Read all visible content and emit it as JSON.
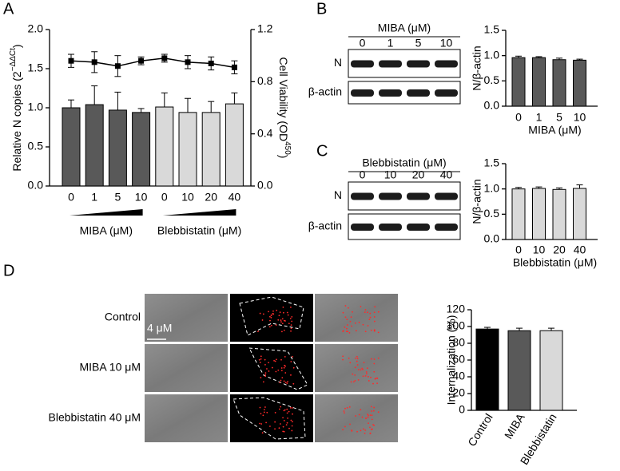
{
  "panel_labels": [
    "A",
    "B",
    "C",
    "D"
  ],
  "chart_data": [
    {
      "type": "bar",
      "ylabel": [
        "Relative N copies (2",
        "−ΔΔCt",
        ")"
      ],
      "y2label": [
        "Cell Viability (OD",
        "450",
        ")"
      ],
      "categories": [
        "0",
        "1",
        "5",
        "10",
        "0",
        "10",
        "20",
        "40"
      ],
      "groups": [
        "MIBA (μM)",
        "Blebbistatin (μM)"
      ],
      "ylim": [
        0,
        2
      ],
      "yticks": [
        {
          "value": 0,
          "label": "0.0"
        },
        0.5,
        {
          "value": 1,
          "label": "1.0"
        },
        1.5,
        {
          "value": 2,
          "label": "2.0"
        }
      ],
      "y2lim": [
        0,
        1.2
      ],
      "y2ticks": [
        {
          "value": 0,
          "label": "0.0"
        },
        0.4,
        0.8,
        1.2
      ],
      "series": [
        {
          "type": "bar",
          "colors": [
            "#595959",
            "#595959",
            "#595959",
            "#595959",
            "#d9d9d9",
            "#d9d9d9",
            "#d9d9d9",
            "#d9d9d9"
          ],
          "values": [
            1.0,
            1.04,
            0.97,
            0.94,
            1.01,
            0.94,
            0.94,
            1.05
          ],
          "errors": [
            0.1,
            0.24,
            0.23,
            0.05,
            0.18,
            0.18,
            0.14,
            0.14
          ]
        },
        {
          "type": "line",
          "axis": "y2",
          "color": "#000000",
          "values": [
            0.96,
            0.95,
            0.92,
            0.96,
            0.98,
            0.95,
            0.94,
            0.91
          ],
          "errors": [
            0.05,
            0.08,
            0.08,
            0.03,
            0.03,
            0.05,
            0.05,
            0.05
          ]
        }
      ]
    },
    {
      "type": "bar",
      "ylabel": "N/β-actin",
      "xlabel": "MIBA (μM)",
      "categories": [
        "0",
        "1",
        "5",
        "10"
      ],
      "ylim": [
        0,
        1.5
      ],
      "yticks": [
        {
          "value": 0,
          "label": "0.0"
        },
        0.5,
        {
          "value": 1,
          "label": "1.0"
        },
        1.5
      ],
      "series": [
        {
          "type": "bar",
          "color": "#595959",
          "values": [
            0.96,
            0.96,
            0.92,
            0.91
          ],
          "errors": [
            0.03,
            0.02,
            0.03,
            0.02
          ]
        }
      ]
    },
    {
      "type": "bar",
      "ylabel": "N/β-actin",
      "xlabel": "Blebbistatin (μM)",
      "categories": [
        "0",
        "10",
        "20",
        "40"
      ],
      "ylim": [
        0,
        1.5
      ],
      "yticks": [
        {
          "value": 0,
          "label": "0.0"
        },
        0.5,
        {
          "value": 1,
          "label": "1.0"
        },
        1.5
      ],
      "series": [
        {
          "type": "bar",
          "color": "#d9d9d9",
          "values": [
            1.0,
            1.01,
            0.99,
            1.01
          ],
          "errors": [
            0.03,
            0.03,
            0.03,
            0.07
          ]
        }
      ]
    },
    {
      "type": "bar",
      "ylabel": "Internalization (%)",
      "categories": [
        "Control",
        "MIBA",
        "Blebbistatin"
      ],
      "ylim": [
        0,
        120
      ],
      "yticks": [
        0,
        20,
        40,
        60,
        80,
        100,
        120
      ],
      "series": [
        {
          "type": "bar",
          "colors": [
            "#000000",
            "#595959",
            "#d9d9d9"
          ],
          "values": [
            97,
            95,
            95
          ],
          "errors": [
            2,
            3,
            3
          ]
        }
      ]
    }
  ],
  "blots": [
    {
      "title": "MIBA (μM)",
      "lanes": [
        "0",
        "1",
        "5",
        "10"
      ],
      "rows": [
        "N",
        "β-actin"
      ]
    },
    {
      "title": "Blebbistatin (μM)",
      "lanes": [
        "0",
        "10",
        "20",
        "40"
      ],
      "rows": [
        "N",
        "β-actin"
      ]
    }
  ],
  "microscopy": {
    "rows": [
      "Control",
      "MIBA 10 μM",
      "Blebbistatin 40 μM"
    ],
    "scale_bar": "4 μM"
  }
}
